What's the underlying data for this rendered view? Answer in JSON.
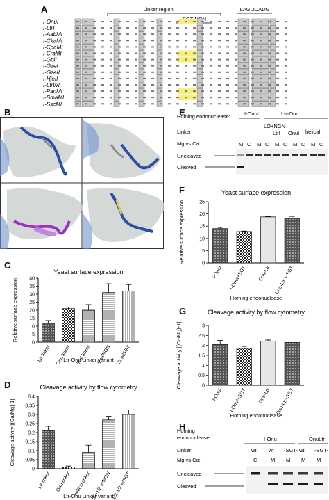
{
  "panelA": {
    "letter": "A",
    "linker_region_label": "Linker region",
    "laglidadg_label": "LAGLIDADG",
    "sgt_ngn_label": "SGT/NGN",
    "enzymes": [
      "I-OnuI",
      "I-LtrI",
      "I-AabMI",
      "I-CkaMI",
      "I-CpaMI",
      "I-CraMI",
      "I-GpiI",
      "I-GzeI",
      "I-GzeII",
      "I-HjeII",
      "I-LtrWI",
      "I-PanMI",
      "I-SmaMI",
      "I-SscMI"
    ]
  },
  "panelB": {
    "letter": "B"
  },
  "panelC": {
    "letter": "C",
    "title": "Yeast surface expression",
    "xlabel": "Ltr-Onu Linker variant",
    "ylabel": "Relative surface expression"
  },
  "panelD": {
    "letter": "D",
    "title": "Cleavage activity by flow cytometry",
    "xlabel": "Ltr-Onu Linker variant",
    "ylabel": "Cleavage activity [(Ca/Mg)-1]"
  },
  "panelE": {
    "letter": "E",
    "homing_label": "Homing endonuclease:",
    "linker_label": "Linker:",
    "mg_ca_label": "Mg vs Ca:",
    "ionul": "I-OnuI",
    "ltr_onu": "Ltr-Onu",
    "lo_ngn": "LO+NGN",
    "ltri": "LtrI",
    "onui": "OnuI",
    "helical": "helical",
    "lanes": [
      "M",
      "C",
      "M",
      "C",
      "M",
      "C",
      "M",
      "C",
      "M",
      "C"
    ],
    "uncleaved": "Uncleaved",
    "cleaved": "Cleaved"
  },
  "panelF": {
    "letter": "F",
    "title": "Yeast surface expression",
    "xlabel": "Homing endonuclease",
    "ylabel": "Relative surface expression"
  },
  "panelG": {
    "letter": "G",
    "title": "Cleavage activity by flow cytometry",
    "xlabel": "Homing endonuclease",
    "ylabel": "Cleavage activity [(Ca/Mg)-1]"
  },
  "panelH": {
    "letter": "H",
    "homing_label": "Homing endonuclease:",
    "linker_label": "Linker:",
    "mg_ca_label": "Mg vs Ca:",
    "ionu": "I-Onu",
    "onultr": "OnuLtr",
    "linkers": [
      "wt",
      "wt",
      "-SGT-",
      "wt",
      "-SGT-"
    ],
    "lanes": [
      "C",
      "M",
      "M",
      "M",
      "M"
    ],
    "uncleaved": "Uncleaved",
    "cleaved": "Cleaved"
  },
  "chart_data": [
    {
      "panel": "C",
      "type": "bar",
      "title": "Yeast surface expression",
      "xlabel": "Ltr-Onu Linker variant",
      "ylabel": "Relative surface expression",
      "categories": [
        "Ltr linker",
        "Onu linker",
        "Helical linker",
        "1/2-1/2 w/NGN",
        "1/2-1/2 w/SGT"
      ],
      "values": [
        12,
        21,
        20,
        31,
        32
      ],
      "errors": [
        1.5,
        1,
        3.5,
        5.5,
        4
      ],
      "ylim": [
        0,
        40
      ],
      "yticks": [
        0,
        5,
        10,
        15,
        20,
        25,
        30,
        35,
        40
      ]
    },
    {
      "panel": "D",
      "type": "bar",
      "title": "Cleavage activity by flow cytometry",
      "xlabel": "Ltr-Onu Linker variant",
      "ylabel": "Cleavage activity [(Ca/Mg)-1]",
      "categories": [
        "Ltr linker",
        "Onu linker",
        "helical linker",
        "1/2-1/2 w/NGN",
        "1/2-1/2 w/SGT"
      ],
      "values": [
        0.21,
        0.01,
        0.09,
        0.27,
        0.3
      ],
      "errors": [
        0.025,
        0.005,
        0.04,
        0.02,
        0.025
      ],
      "ylim": [
        0,
        0.4
      ],
      "yticks": [
        "0",
        "0.05",
        "0.1",
        "0.15",
        "0.2",
        "0.25",
        "0.3",
        "0.35",
        "0.4"
      ]
    },
    {
      "panel": "F",
      "type": "bar",
      "title": "Yeast surface expression",
      "xlabel": "Homing endonuclease",
      "ylabel": "Relative surface expression",
      "categories": [
        "I-OnuI",
        "I-OnuI+SGT",
        "Onu-Ltr",
        "Onu-Ltr + SGT"
      ],
      "values": [
        14,
        12.8,
        18.8,
        18.2
      ],
      "errors": [
        0.5,
        0.2,
        0.2,
        0.8
      ],
      "ylim": [
        0,
        25
      ],
      "yticks": [
        0,
        5,
        10,
        15,
        20,
        25
      ]
    },
    {
      "panel": "G",
      "type": "bar",
      "title": "Cleavage activity by flow cytometry",
      "xlabel": "Homing endonuclease",
      "ylabel": "Cleavage activity [(Ca/Mg)-1]",
      "categories": [
        "I-OnuI",
        "I-OnuI+SGT",
        "Onu-Ltr",
        "Onu-Ltr+SGT"
      ],
      "values": [
        2.05,
        1.85,
        2.22,
        2.15
      ],
      "errors": [
        0.2,
        0.1,
        0.05,
        0.0
      ],
      "ylim": [
        0,
        3
      ],
      "yticks": [
        "0",
        "0.5",
        "1",
        "1.5",
        "2",
        "2.5",
        "3"
      ]
    }
  ],
  "colors": {
    "sequence_highlight": "#c8c8c8",
    "linker_highlight": "#f7ef7a",
    "structure_blue": "#2c4fa0",
    "structure_purple": "#9b2fc4",
    "structure_grey": "#9da4a3",
    "gel_band": "#1a1a1a"
  }
}
